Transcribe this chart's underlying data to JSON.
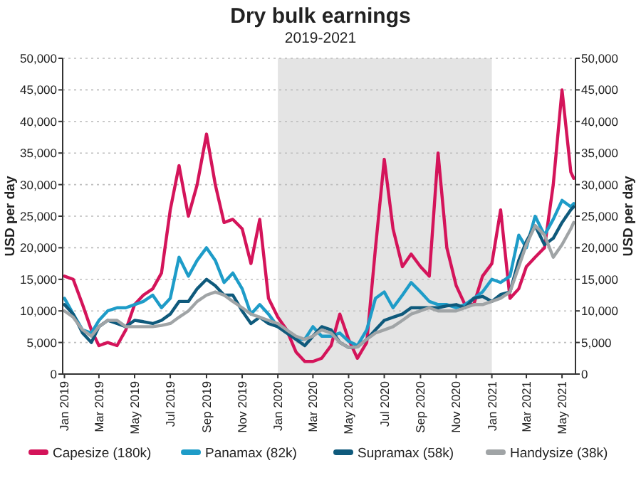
{
  "chart_data": {
    "type": "line",
    "title": "Dry bulk earnings",
    "subtitle": "2019-2021",
    "ylabel": "USD per day",
    "y2label": "USD per day",
    "x": [
      "2019-01-01",
      "2019-01-16",
      "2019-02-01",
      "2019-02-16",
      "2019-03-01",
      "2019-03-16",
      "2019-04-01",
      "2019-04-16",
      "2019-05-01",
      "2019-05-16",
      "2019-06-01",
      "2019-06-16",
      "2019-07-01",
      "2019-07-16",
      "2019-08-01",
      "2019-08-16",
      "2019-09-01",
      "2019-09-16",
      "2019-10-01",
      "2019-10-16",
      "2019-11-01",
      "2019-11-16",
      "2019-12-01",
      "2019-12-16",
      "2020-01-01",
      "2020-01-16",
      "2020-02-01",
      "2020-02-16",
      "2020-03-01",
      "2020-03-16",
      "2020-04-01",
      "2020-04-16",
      "2020-05-01",
      "2020-05-16",
      "2020-06-01",
      "2020-06-16",
      "2020-07-01",
      "2020-07-16",
      "2020-08-01",
      "2020-08-16",
      "2020-09-01",
      "2020-09-16",
      "2020-10-01",
      "2020-10-16",
      "2020-11-01",
      "2020-11-16",
      "2020-12-01",
      "2020-12-16",
      "2021-01-01",
      "2021-01-16",
      "2021-02-01",
      "2021-02-16",
      "2021-03-01",
      "2021-03-16",
      "2021-04-01",
      "2021-04-16",
      "2021-05-01",
      "2021-05-16",
      "2021-05-21"
    ],
    "xlim": [
      "2018-12-29",
      "2021-05-24"
    ],
    "xticks": [
      {
        "value": "2019-01-01",
        "label": "Jan 2019"
      },
      {
        "value": "2019-03-01",
        "label": "Mar 2019"
      },
      {
        "value": "2019-05-01",
        "label": "May 2019"
      },
      {
        "value": "2019-07-01",
        "label": "Jul 2019"
      },
      {
        "value": "2019-09-01",
        "label": "Sep 2019"
      },
      {
        "value": "2019-11-01",
        "label": "Nov 2019"
      },
      {
        "value": "2020-01-01",
        "label": "Jan 2020"
      },
      {
        "value": "2020-03-01",
        "label": "Mar 2020"
      },
      {
        "value": "2020-05-01",
        "label": "May 2020"
      },
      {
        "value": "2020-07-01",
        "label": "Jul 2020"
      },
      {
        "value": "2020-09-01",
        "label": "Sep 2020"
      },
      {
        "value": "2020-11-01",
        "label": "Nov 2020"
      },
      {
        "value": "2021-01-01",
        "label": "Jan 2021"
      },
      {
        "value": "2021-03-01",
        "label": "Mar 2021"
      },
      {
        "value": "2021-05-01",
        "label": "May 2021"
      }
    ],
    "ylim": [
      0,
      50000
    ],
    "yticks": [
      {
        "value": 0,
        "label": "0"
      },
      {
        "value": 5000,
        "label": "5,000"
      },
      {
        "value": 10000,
        "label": "10,000"
      },
      {
        "value": 15000,
        "label": "15,000"
      },
      {
        "value": 20000,
        "label": "20,000"
      },
      {
        "value": 25000,
        "label": "25,000"
      },
      {
        "value": 30000,
        "label": "30,000"
      },
      {
        "value": 35000,
        "label": "35,000"
      },
      {
        "value": 40000,
        "label": "40,000"
      },
      {
        "value": 45000,
        "label": "45,000"
      },
      {
        "value": 50000,
        "label": "50,000"
      }
    ],
    "y2lim": [
      0,
      50000
    ],
    "y2ticks": [
      {
        "value": 0,
        "label": "0"
      },
      {
        "value": 5000,
        "label": "5,000"
      },
      {
        "value": 10000,
        "label": "10,000"
      },
      {
        "value": 15000,
        "label": "15,000"
      },
      {
        "value": 20000,
        "label": "20,000"
      },
      {
        "value": 25000,
        "label": "25,000"
      },
      {
        "value": 30000,
        "label": "30,000"
      },
      {
        "value": 35000,
        "label": "35,000"
      },
      {
        "value": 40000,
        "label": "40,000"
      },
      {
        "value": 45000,
        "label": "45,000"
      },
      {
        "value": 50000,
        "label": "50,000"
      }
    ],
    "bands": [
      {
        "axis": "x",
        "from": "2020-01-01",
        "to": "2021-01-01",
        "color": "#e4e4e4"
      }
    ],
    "grid": "y",
    "legend": "bottom",
    "series": [
      {
        "name": "Capesize (180k)",
        "color": "#d4145a",
        "values": [
          15500,
          15000,
          11000,
          7000,
          4500,
          5000,
          4500,
          7000,
          11000,
          12500,
          13500,
          16000,
          26000,
          33000,
          25000,
          30000,
          38000,
          30000,
          24000,
          24500,
          23000,
          17500,
          24500,
          12000,
          9000,
          7000,
          3500,
          2000,
          2000,
          2500,
          4500,
          9500,
          5500,
          2500,
          5000,
          20000,
          34000,
          23000,
          17000,
          19000,
          17000,
          15500,
          35000,
          20000,
          14000,
          11000,
          11000,
          15500,
          17500,
          26000,
          12000,
          13500,
          17000,
          18500,
          20000,
          30000,
          45000,
          32000,
          31000
        ]
      },
      {
        "name": "Panamax (82k)",
        "color": "#1e9cc8",
        "values": [
          12000,
          9500,
          7000,
          6500,
          8500,
          10000,
          10500,
          10500,
          11000,
          11500,
          12500,
          10500,
          12000,
          18500,
          15500,
          18000,
          20000,
          18000,
          14500,
          16000,
          13500,
          9500,
          11000,
          9500,
          7500,
          7000,
          5500,
          5500,
          7500,
          6000,
          6000,
          6500,
          5200,
          4500,
          7000,
          12000,
          13000,
          10500,
          12500,
          14500,
          13000,
          11500,
          11000,
          11000,
          10500,
          11000,
          12000,
          13000,
          15000,
          14500,
          15500,
          22000,
          20000,
          25000,
          22000,
          24500,
          27500,
          26500,
          27000
        ]
      },
      {
        "name": "Supramax (58k)",
        "color": "#0f5a7c",
        "values": [
          11000,
          9500,
          6500,
          5000,
          7500,
          8500,
          8000,
          7500,
          8500,
          8300,
          8000,
          8500,
          9500,
          11500,
          11500,
          13500,
          15000,
          14000,
          12500,
          12500,
          10000,
          8000,
          9000,
          8000,
          7500,
          6500,
          5500,
          4500,
          6000,
          7500,
          7000,
          5000,
          4200,
          4300,
          5500,
          7000,
          8500,
          9000,
          9500,
          10500,
          10500,
          10500,
          10500,
          10800,
          11000,
          10500,
          12000,
          12300,
          11500,
          12600,
          13000,
          18000,
          21000,
          23500,
          20500,
          21500,
          24000,
          26000,
          26500
        ]
      },
      {
        "name": "Handysize (38k)",
        "color": "#a0a4a6",
        "values": [
          10000,
          9000,
          7000,
          6000,
          7500,
          8500,
          8500,
          7500,
          7500,
          7500,
          7500,
          7700,
          8000,
          9000,
          10000,
          11500,
          12500,
          13000,
          12500,
          11500,
          10500,
          9500,
          9000,
          8500,
          8000,
          7000,
          6000,
          5500,
          6000,
          7000,
          6500,
          5000,
          4200,
          4300,
          5500,
          6500,
          7000,
          7500,
          8500,
          9500,
          10000,
          10500,
          10000,
          10000,
          10000,
          10500,
          11000,
          11000,
          11500,
          12000,
          13000,
          17000,
          20500,
          23500,
          22000,
          18500,
          20500,
          23000,
          24000
        ]
      }
    ]
  }
}
